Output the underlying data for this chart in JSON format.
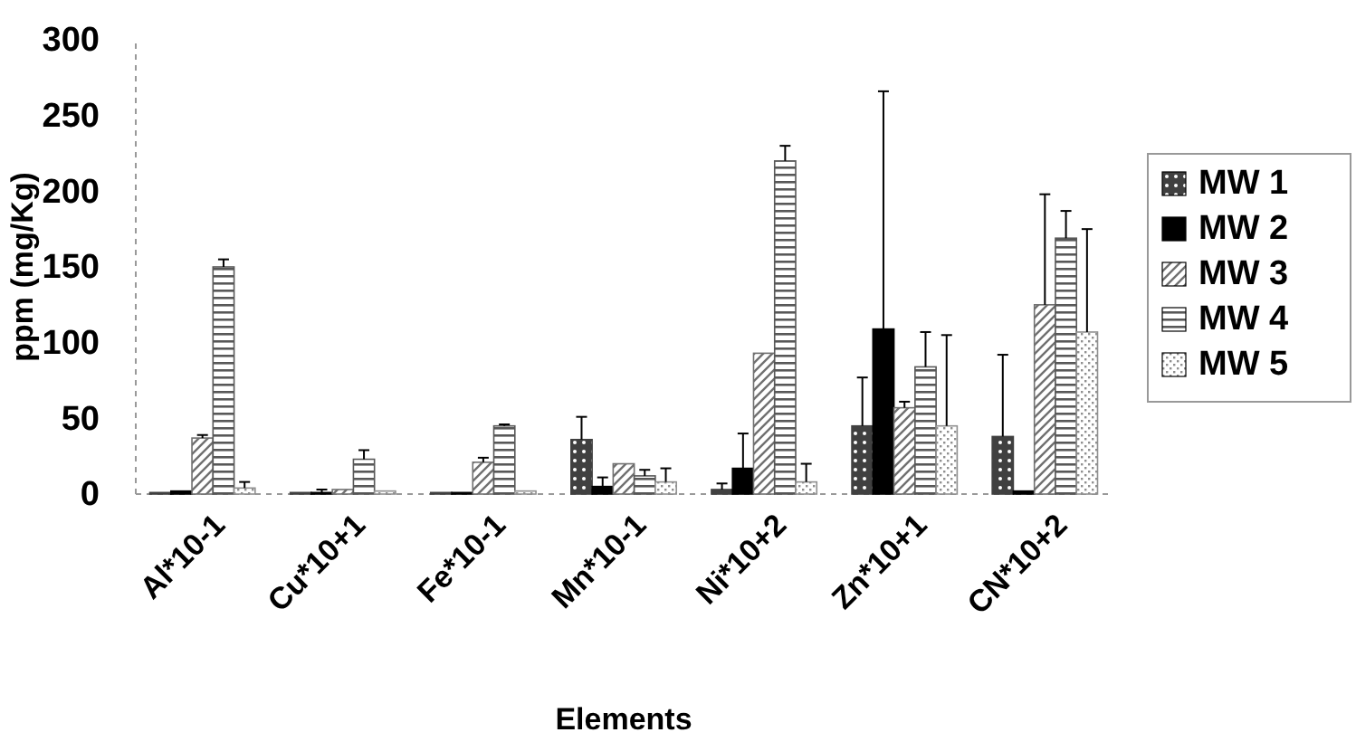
{
  "chart_data": {
    "type": "bar",
    "xlabel": "Elements",
    "ylabel": "ppm (mg/Kg)",
    "categories": [
      "Al*10-1",
      "Cu*10+1",
      "Fe*10-1",
      "Mn*10-1",
      "Ni*10+2",
      "Zn*10+1",
      "CN*10+2"
    ],
    "ylim": [
      0,
      300
    ],
    "yticks": [
      0,
      50,
      100,
      150,
      200,
      250,
      300
    ],
    "legend": "right",
    "series": [
      {
        "name": "MW 1",
        "color": "#404040",
        "values": [
          1,
          1,
          1,
          36,
          3,
          45,
          38
        ],
        "errors": [
          null,
          null,
          null,
          [
            36,
            51
          ],
          [
            3,
            7
          ],
          [
            45,
            77
          ],
          [
            38,
            92
          ]
        ]
      },
      {
        "name": "MW 2",
        "color": "#000000",
        "values": [
          2,
          1,
          1,
          5,
          17,
          109,
          2
        ],
        "errors": [
          null,
          [
            1,
            3
          ],
          null,
          [
            5,
            11
          ],
          [
            17,
            40
          ],
          [
            109,
            266
          ],
          null
        ]
      },
      {
        "name": "MW 3",
        "color": "#707070",
        "values": [
          37,
          3,
          21,
          20,
          93,
          57,
          125
        ],
        "errors": [
          [
            37,
            39
          ],
          null,
          [
            21,
            24
          ],
          null,
          null,
          [
            57,
            61
          ],
          [
            125,
            198
          ]
        ]
      },
      {
        "name": "MW 4",
        "color": "#585858",
        "values": [
          150,
          23,
          45,
          12,
          220,
          84,
          169
        ],
        "errors": [
          [
            150,
            155
          ],
          [
            23,
            29
          ],
          [
            45,
            46
          ],
          [
            12,
            16
          ],
          [
            220,
            230
          ],
          [
            84,
            107
          ],
          [
            169,
            187
          ]
        ]
      },
      {
        "name": "MW 5",
        "color": "#909090",
        "values": [
          4,
          2,
          2,
          8,
          8,
          45,
          107
        ],
        "errors": [
          [
            4,
            8
          ],
          null,
          null,
          [
            8,
            17
          ],
          [
            8,
            20
          ],
          [
            45,
            105
          ],
          [
            107,
            175
          ]
        ]
      }
    ]
  }
}
